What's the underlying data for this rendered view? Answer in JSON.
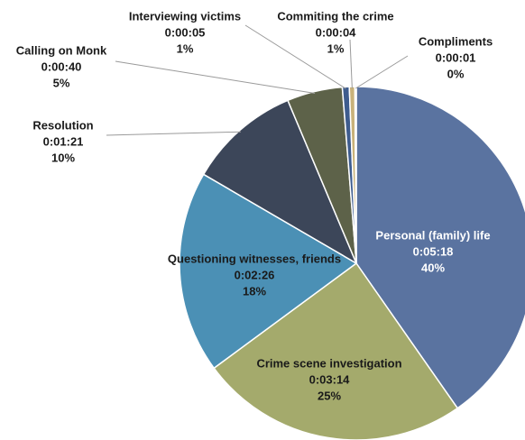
{
  "chart_data": {
    "type": "pie",
    "categories": [
      "Personal (family) life",
      "Crime scene investigation",
      "Questioning witnesses, friends",
      "Resolution",
      "Calling on Monk",
      "Interviewing victims",
      "Commiting the crime",
      "Compliments"
    ],
    "values": [
      318,
      194,
      146,
      81,
      40,
      5,
      4,
      1
    ],
    "value_labels": [
      "0:05:18",
      "0:03:14",
      "0:02:26",
      "0:01:21",
      "0:00:40",
      "0:00:05",
      "0:00:04",
      "0:00:01"
    ],
    "percent_labels": [
      "40%",
      "25%",
      "18%",
      "10%",
      "5%",
      "1%",
      "1%",
      "0%"
    ],
    "colors": [
      "#5a73a0",
      "#a4aa6c",
      "#4b90b5",
      "#3c4659",
      "#5d6249",
      "#3e5c8e",
      "#c9b27a",
      "#8fb2da"
    ]
  }
}
